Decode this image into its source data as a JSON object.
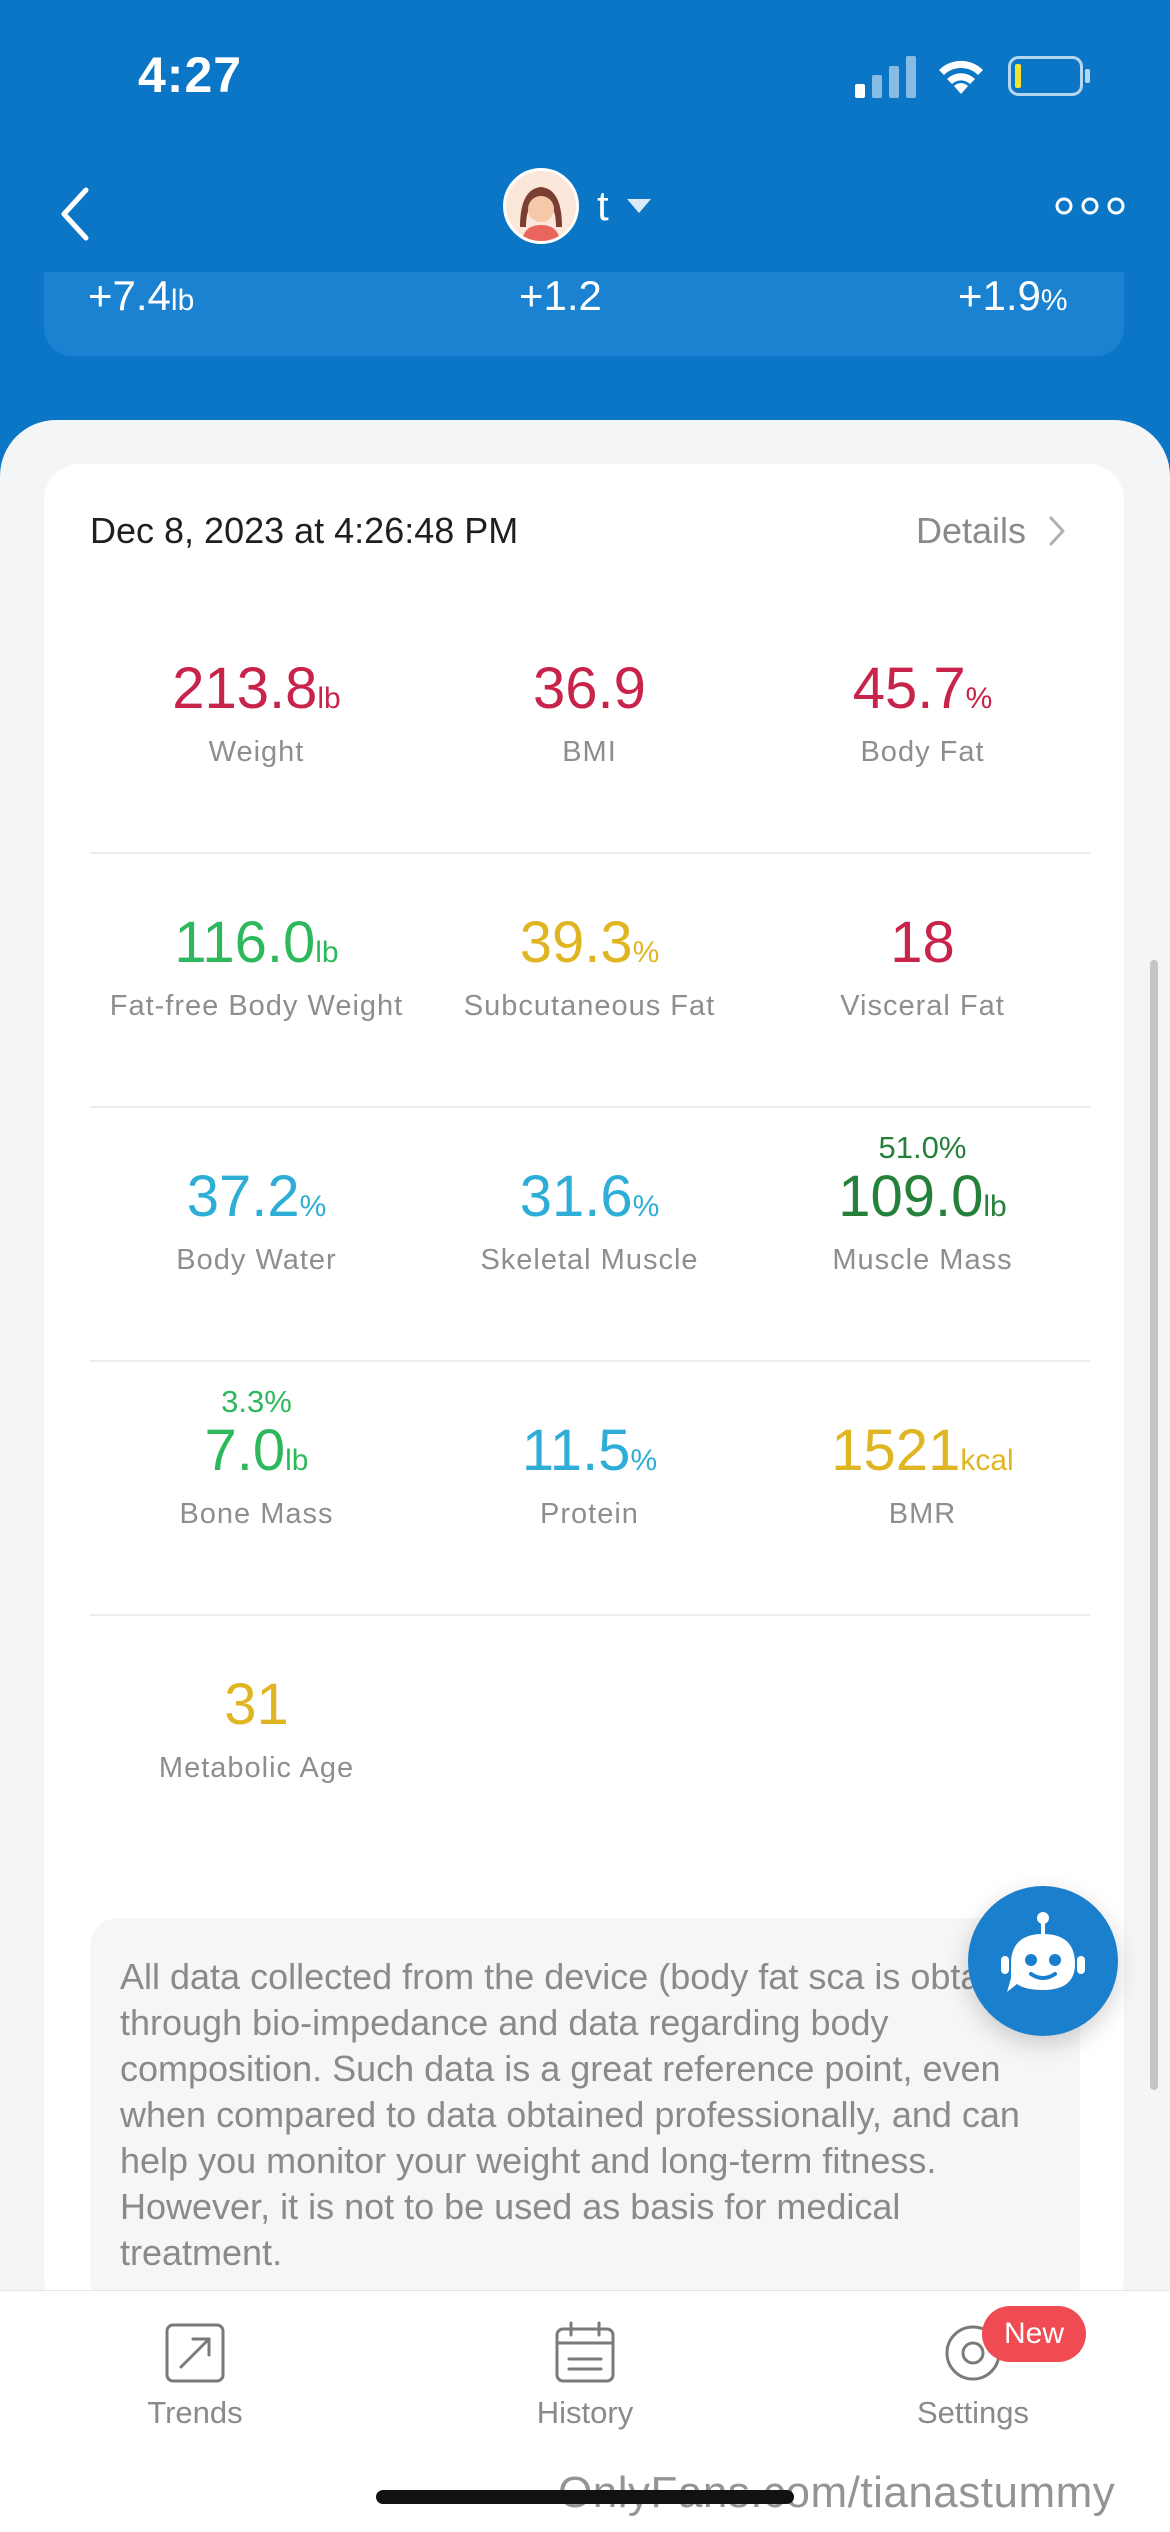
{
  "status_bar": {
    "time": "4:27"
  },
  "header": {
    "profile_name": "t"
  },
  "summary": [
    {
      "value": "+7.4",
      "unit": "lb"
    },
    {
      "value": "+1.2",
      "unit": ""
    },
    {
      "value": "+1.9",
      "unit": "%"
    }
  ],
  "record": {
    "date": "Dec 8, 2023 at 4:26:48 PM",
    "details_label": "Details"
  },
  "colors": {
    "red": "#c8234a",
    "green": "#2eb85c",
    "yellow": "#e0b522",
    "cyan": "#2eaed6",
    "dark_green": "#25803a"
  },
  "metrics": [
    [
      {
        "value": "213.8",
        "unit": "lb",
        "label": "Weight",
        "color": "#c8234a"
      },
      {
        "value": "36.9",
        "unit": "",
        "label": "BMI",
        "color": "#c8234a"
      },
      {
        "value": "45.7",
        "unit": "%",
        "label": "Body Fat",
        "color": "#c8234a"
      }
    ],
    [
      {
        "value": "116.0",
        "unit": "lb",
        "label": "Fat-free Body Weight",
        "color": "#2eb85c"
      },
      {
        "value": "39.3",
        "unit": "%",
        "label": "Subcutaneous Fat",
        "color": "#e0b522"
      },
      {
        "value": "18",
        "unit": "",
        "label": "Visceral Fat",
        "color": "#c8234a"
      }
    ],
    [
      {
        "value": "37.2",
        "unit": "%",
        "label": "Body Water",
        "color": "#2eaed6"
      },
      {
        "value": "31.6",
        "unit": "%",
        "label": "Skeletal Muscle",
        "color": "#2eaed6"
      },
      {
        "value": "109.0",
        "unit": "lb",
        "label": "Muscle Mass",
        "color": "#25803a",
        "percent": "51.0%"
      }
    ],
    [
      {
        "value": "7.0",
        "unit": "lb",
        "label": "Bone Mass",
        "color": "#2eb85c",
        "percent": "3.3%"
      },
      {
        "value": "11.5",
        "unit": "%",
        "label": "Protein",
        "color": "#2eaed6"
      },
      {
        "value": "1521",
        "unit": "kcal",
        "label": "BMR",
        "color": "#e0b522"
      }
    ],
    [
      {
        "value": "31",
        "unit": "",
        "label": "Metabolic Age",
        "color": "#e0b522"
      }
    ]
  ],
  "disclaimer": "All data collected from the device (body fat sca is obtained through bio-impedance and data regarding body composition. Such data is a great reference point, even when compared to data obtained professionally, and can help you monitor your weight and long-term fitness. However, it is not to be used as basis for medical treatment.",
  "tabs": [
    {
      "label": "Trends",
      "icon": "trend-arrow-icon"
    },
    {
      "label": "History",
      "icon": "calendar-icon"
    },
    {
      "label": "Settings",
      "icon": "gear-icon"
    }
  ],
  "badge": "New",
  "watermark": "OnlyFans.com/tianastummy"
}
